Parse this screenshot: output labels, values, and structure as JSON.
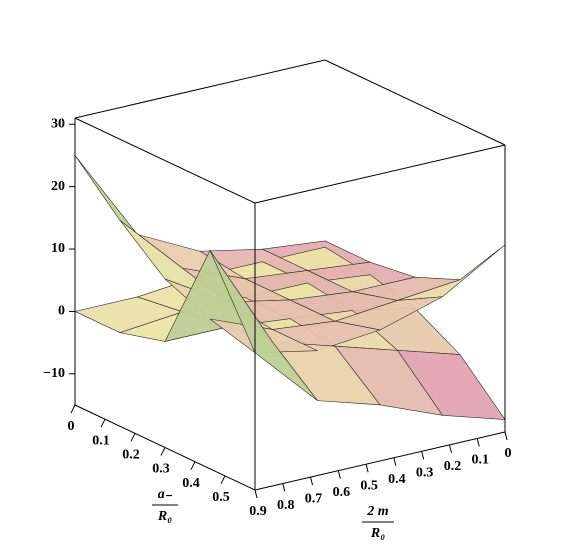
{
  "chart_data": {
    "type": "surface3d",
    "xlabel_num": "a₋",
    "xlabel_den": "R₀",
    "ylabel_num": "2 m",
    "ylabel_den": "R₀",
    "xlim": [
      0,
      0.6
    ],
    "xticks": [
      0,
      0.1,
      0.2,
      0.3,
      0.4,
      0.5
    ],
    "ylim": [
      0.9,
      0
    ],
    "yticks": [
      0.9,
      0.8,
      0.7,
      0.6,
      0.5,
      0.4,
      0.3,
      0.2,
      0.1,
      0
    ],
    "zlim": [
      -15,
      31
    ],
    "zticks": [
      30,
      20,
      10,
      0,
      {
        "value": -10,
        "label": "−10"
      }
    ],
    "colors": [
      "#d63fc0",
      "#ece6a8",
      "#2f8a5a"
    ],
    "surface_x": [
      0,
      0.15,
      0.3,
      0.45,
      0.6
    ],
    "surface_y": [
      0,
      0.225,
      0.45,
      0.675,
      0.9
    ],
    "surfaces": [
      {
        "z": [
          [
            2,
            3,
            5,
            10,
            25
          ],
          [
            2,
            3,
            4,
            8,
            18
          ],
          [
            3,
            3,
            4,
            6,
            12
          ],
          [
            6,
            5,
            4,
            5,
            9
          ],
          [
            15,
            9,
            6,
            5,
            7
          ]
        ]
      },
      {
        "z": [
          [
            1,
            1,
            1,
            0,
            0
          ],
          [
            0,
            1,
            1,
            1,
            0
          ],
          [
            -2,
            0,
            1,
            2,
            2
          ],
          [
            -6,
            -3,
            0,
            3,
            20
          ],
          [
            -13,
            -10,
            -6,
            -3,
            7
          ]
        ]
      }
    ]
  }
}
